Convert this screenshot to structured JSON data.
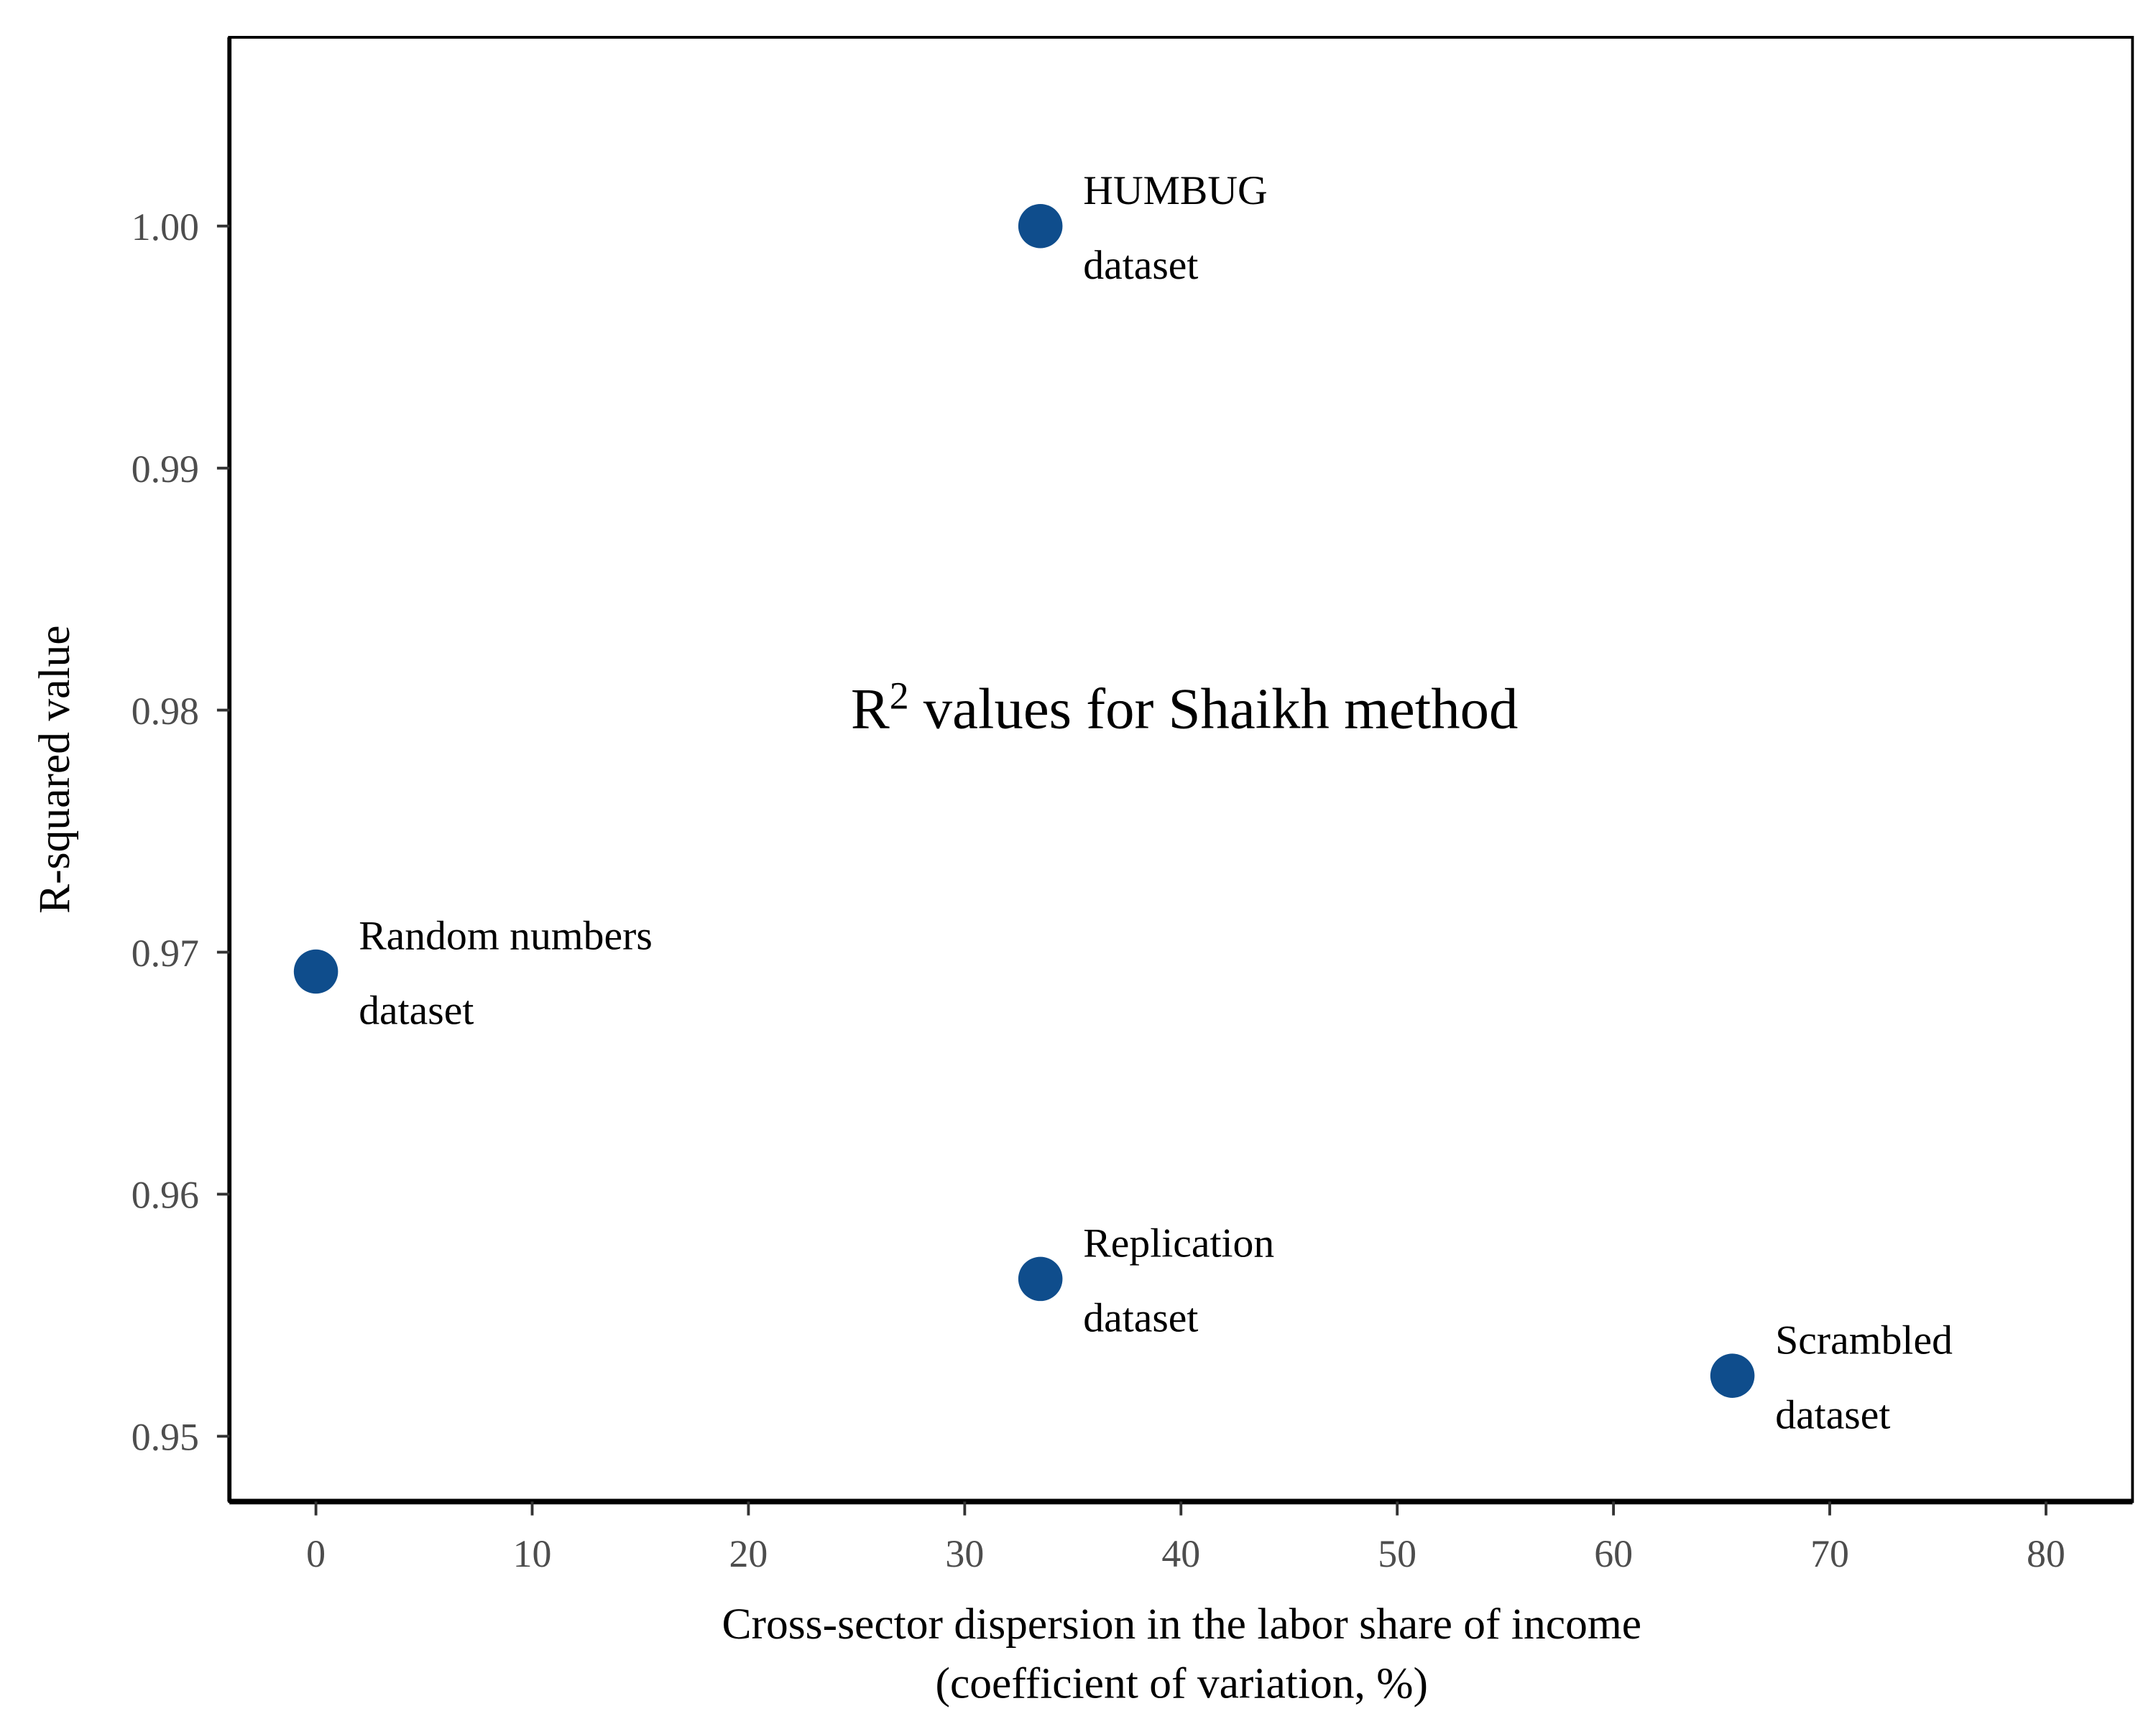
{
  "chart_data": {
    "type": "scatter",
    "title": {
      "base": "R",
      "sup": "2",
      "rest": " values for Shaikh method"
    },
    "xlabel": [
      "Cross-sector dispersion in the labor share of income",
      "(coefficient of variation, %)"
    ],
    "ylabel": "R-squared value",
    "xlim": [
      -4,
      84
    ],
    "ylim": [
      0.9473,
      1.0078
    ],
    "xticks": [
      0,
      10,
      20,
      30,
      40,
      50,
      60,
      70,
      80
    ],
    "xtick_labels": [
      "0",
      "10",
      "20",
      "30",
      "40",
      "50",
      "60",
      "70",
      "80"
    ],
    "yticks": [
      0.95,
      0.96,
      0.97,
      0.98,
      0.99,
      1.0
    ],
    "ytick_labels": [
      "0.95",
      "0.96",
      "0.97",
      "0.98",
      "0.99",
      "1.00"
    ],
    "grid": false,
    "marker_color": "#0f4d8c",
    "points": [
      {
        "x": 0,
        "y": 0.9692,
        "label": [
          "Random numbers",
          "dataset"
        ]
      },
      {
        "x": 33.5,
        "y": 1.0,
        "label": [
          "HUMBUG",
          "dataset"
        ]
      },
      {
        "x": 33.5,
        "y": 0.9565,
        "label": [
          "Replication",
          "dataset"
        ]
      },
      {
        "x": 65.5,
        "y": 0.9525,
        "label": [
          "Scrambled",
          "dataset"
        ]
      }
    ]
  }
}
